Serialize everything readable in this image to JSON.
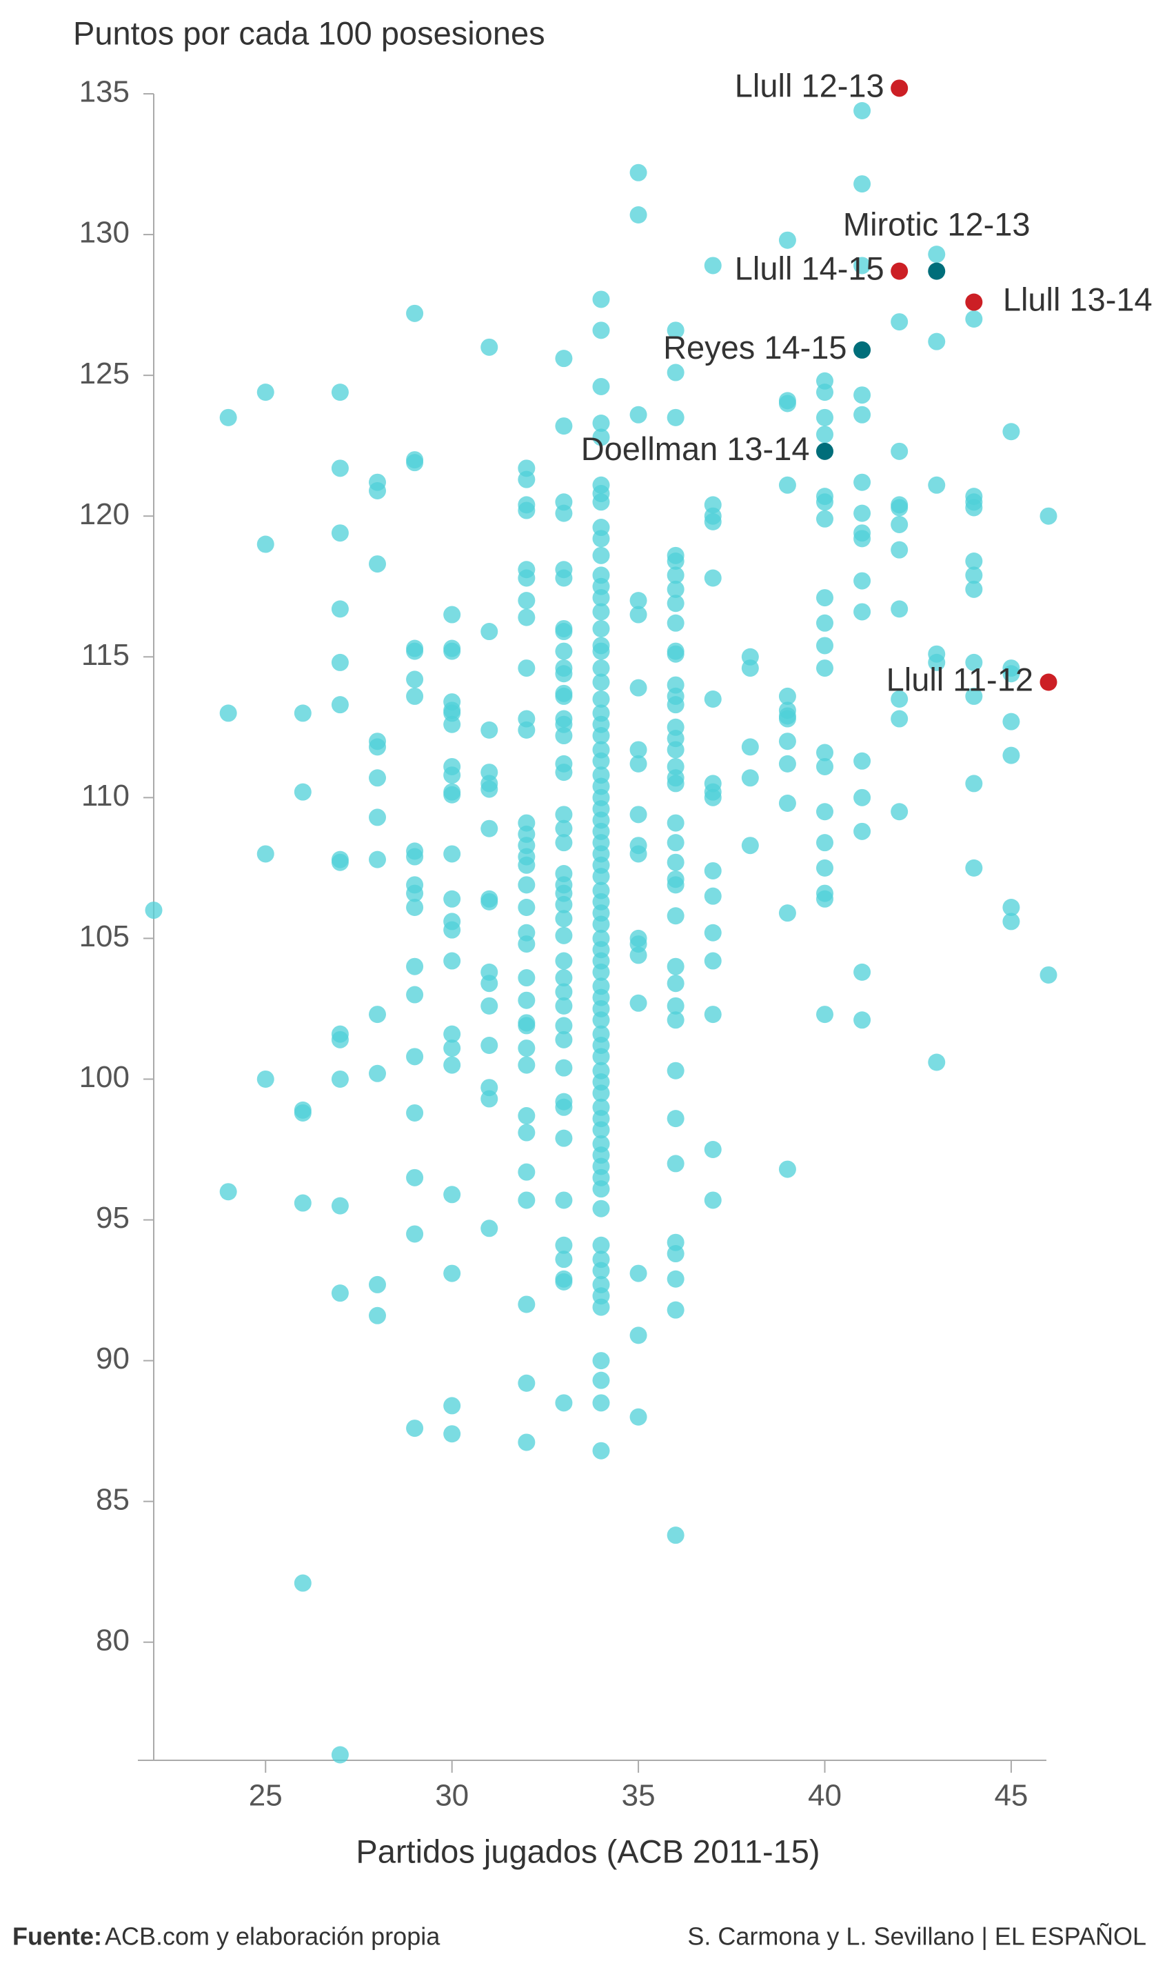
{
  "chart_data": {
    "type": "scatter",
    "title": "Puntos por cada 100 posesiones",
    "x_label": "Partidos jugados (ACB 2011-15)",
    "xlim": [
      22,
      46
    ],
    "xticks": [
      25,
      30,
      35,
      40,
      45
    ],
    "ylim": [
      76,
      135
    ],
    "yticks": [
      80,
      85,
      90,
      95,
      100,
      105,
      110,
      115,
      120,
      125,
      130,
      135
    ],
    "color": "#4fd0d8",
    "points": [
      [
        22,
        106
      ],
      [
        24,
        123.5
      ],
      [
        24,
        113
      ],
      [
        24,
        96
      ],
      [
        25,
        124.4
      ],
      [
        25,
        119
      ],
      [
        25,
        108
      ],
      [
        25,
        100
      ],
      [
        26,
        113
      ],
      [
        26,
        110.2
      ],
      [
        26,
        98.9
      ],
      [
        26,
        98.8
      ],
      [
        26,
        95.6
      ],
      [
        26,
        82.1
      ],
      [
        27,
        124.4
      ],
      [
        27,
        121.7
      ],
      [
        27,
        119.4
      ],
      [
        27,
        116.7
      ],
      [
        27,
        114.8
      ],
      [
        27,
        113.3
      ],
      [
        27,
        107.8
      ],
      [
        27,
        107.7
      ],
      [
        27,
        101.6
      ],
      [
        27,
        101.4
      ],
      [
        27,
        100
      ],
      [
        27,
        95.5
      ],
      [
        27,
        92.4
      ],
      [
        27,
        76
      ],
      [
        28,
        121.2
      ],
      [
        28,
        120.9
      ],
      [
        28,
        118.3
      ],
      [
        28,
        112
      ],
      [
        28,
        111.8
      ],
      [
        28,
        110.7
      ],
      [
        28,
        109.3
      ],
      [
        28,
        107.8
      ],
      [
        28,
        102.3
      ],
      [
        28,
        100.2
      ],
      [
        28,
        92.7
      ],
      [
        28,
        91.6
      ],
      [
        29,
        127.2
      ],
      [
        29,
        122
      ],
      [
        29,
        121.9
      ],
      [
        29,
        115.3
      ],
      [
        29,
        115.2
      ],
      [
        29,
        114.2
      ],
      [
        29,
        113.6
      ],
      [
        29,
        108.1
      ],
      [
        29,
        107.9
      ],
      [
        29,
        106.9
      ],
      [
        29,
        106.6
      ],
      [
        29,
        106.1
      ],
      [
        29,
        104
      ],
      [
        29,
        103
      ],
      [
        29,
        100.8
      ],
      [
        29,
        98.8
      ],
      [
        29,
        96.5
      ],
      [
        29,
        94.5
      ],
      [
        29,
        87.6
      ],
      [
        30,
        116.5
      ],
      [
        30,
        115.3
      ],
      [
        30,
        115.2
      ],
      [
        30,
        113.4
      ],
      [
        30,
        113.1
      ],
      [
        30,
        113
      ],
      [
        30,
        112.6
      ],
      [
        30,
        111.1
      ],
      [
        30,
        110.8
      ],
      [
        30,
        110.2
      ],
      [
        30,
        110.1
      ],
      [
        30,
        108
      ],
      [
        30,
        106.4
      ],
      [
        30,
        105.6
      ],
      [
        30,
        105.3
      ],
      [
        30,
        104.2
      ],
      [
        30,
        101.6
      ],
      [
        30,
        101.1
      ],
      [
        30,
        100.5
      ],
      [
        30,
        95.9
      ],
      [
        30,
        93.1
      ],
      [
        30,
        88.4
      ],
      [
        30,
        87.4
      ],
      [
        31,
        126
      ],
      [
        31,
        115.9
      ],
      [
        31,
        112.4
      ],
      [
        31,
        110.9
      ],
      [
        31,
        110.5
      ],
      [
        31,
        110.3
      ],
      [
        31,
        108.9
      ],
      [
        31,
        106.4
      ],
      [
        31,
        106.3
      ],
      [
        31,
        103.8
      ],
      [
        31,
        103.4
      ],
      [
        31,
        102.6
      ],
      [
        31,
        101.2
      ],
      [
        31,
        99.7
      ],
      [
        31,
        99.3
      ],
      [
        31,
        94.7
      ],
      [
        32,
        121.7
      ],
      [
        32,
        121.3
      ],
      [
        32,
        120.4
      ],
      [
        32,
        120.2
      ],
      [
        32,
        118.1
      ],
      [
        32,
        117.8
      ],
      [
        32,
        117
      ],
      [
        32,
        116.4
      ],
      [
        32,
        114.6
      ],
      [
        32,
        112.8
      ],
      [
        32,
        112.4
      ],
      [
        32,
        109.1
      ],
      [
        32,
        108.7
      ],
      [
        32,
        108.3
      ],
      [
        32,
        107.9
      ],
      [
        32,
        107.6
      ],
      [
        32,
        106.9
      ],
      [
        32,
        106.1
      ],
      [
        32,
        105.2
      ],
      [
        32,
        104.8
      ],
      [
        32,
        103.6
      ],
      [
        32,
        102.8
      ],
      [
        32,
        102
      ],
      [
        32,
        101.9
      ],
      [
        32,
        101.1
      ],
      [
        32,
        100.5
      ],
      [
        32,
        98.7
      ],
      [
        32,
        98.1
      ],
      [
        32,
        96.7
      ],
      [
        32,
        95.7
      ],
      [
        32,
        92
      ],
      [
        32,
        89.2
      ],
      [
        32,
        87.1
      ],
      [
        33,
        125.6
      ],
      [
        33,
        123.2
      ],
      [
        33,
        120.5
      ],
      [
        33,
        120.1
      ],
      [
        33,
        118.1
      ],
      [
        33,
        117.8
      ],
      [
        33,
        116
      ],
      [
        33,
        115.9
      ],
      [
        33,
        115.2
      ],
      [
        33,
        114.6
      ],
      [
        33,
        114.4
      ],
      [
        33,
        113.7
      ],
      [
        33,
        113.6
      ],
      [
        33,
        112.8
      ],
      [
        33,
        112.6
      ],
      [
        33,
        112.2
      ],
      [
        33,
        111.2
      ],
      [
        33,
        110.9
      ],
      [
        33,
        109.4
      ],
      [
        33,
        108.9
      ],
      [
        33,
        108.4
      ],
      [
        33,
        107.3
      ],
      [
        33,
        106.9
      ],
      [
        33,
        106.6
      ],
      [
        33,
        106.2
      ],
      [
        33,
        105.7
      ],
      [
        33,
        105.1
      ],
      [
        33,
        104.2
      ],
      [
        33,
        103.6
      ],
      [
        33,
        103.1
      ],
      [
        33,
        102.6
      ],
      [
        33,
        101.9
      ],
      [
        33,
        101.4
      ],
      [
        33,
        100.4
      ],
      [
        33,
        99.2
      ],
      [
        33,
        99
      ],
      [
        33,
        97.9
      ],
      [
        33,
        95.7
      ],
      [
        33,
        94.1
      ],
      [
        33,
        93.6
      ],
      [
        33,
        92.9
      ],
      [
        33,
        92.8
      ],
      [
        33,
        88.5
      ],
      [
        34,
        127.7
      ],
      [
        34,
        126.6
      ],
      [
        34,
        124.6
      ],
      [
        34,
        123.3
      ],
      [
        34,
        122.8
      ],
      [
        34,
        121.1
      ],
      [
        34,
        120.8
      ],
      [
        34,
        120.5
      ],
      [
        34,
        119.6
      ],
      [
        34,
        119.2
      ],
      [
        34,
        118.6
      ],
      [
        34,
        117.9
      ],
      [
        34,
        117.5
      ],
      [
        34,
        117.1
      ],
      [
        34,
        116.6
      ],
      [
        34,
        116
      ],
      [
        34,
        115.4
      ],
      [
        34,
        115.2
      ],
      [
        34,
        114.6
      ],
      [
        34,
        114.1
      ],
      [
        34,
        113.5
      ],
      [
        34,
        113
      ],
      [
        34,
        112.6
      ],
      [
        34,
        112.2
      ],
      [
        34,
        111.7
      ],
      [
        34,
        111.3
      ],
      [
        34,
        110.8
      ],
      [
        34,
        110.4
      ],
      [
        34,
        110
      ],
      [
        34,
        109.6
      ],
      [
        34,
        109.2
      ],
      [
        34,
        108.8
      ],
      [
        34,
        108.4
      ],
      [
        34,
        108
      ],
      [
        34,
        107.6
      ],
      [
        34,
        107.2
      ],
      [
        34,
        106.7
      ],
      [
        34,
        106.3
      ],
      [
        34,
        105.9
      ],
      [
        34,
        105.5
      ],
      [
        34,
        105
      ],
      [
        34,
        104.6
      ],
      [
        34,
        104.2
      ],
      [
        34,
        103.8
      ],
      [
        34,
        103.3
      ],
      [
        34,
        102.9
      ],
      [
        34,
        102.5
      ],
      [
        34,
        102.1
      ],
      [
        34,
        101.6
      ],
      [
        34,
        101.2
      ],
      [
        34,
        100.8
      ],
      [
        34,
        100.3
      ],
      [
        34,
        99.9
      ],
      [
        34,
        99.5
      ],
      [
        34,
        99
      ],
      [
        34,
        98.6
      ],
      [
        34,
        98.2
      ],
      [
        34,
        97.7
      ],
      [
        34,
        97.3
      ],
      [
        34,
        96.9
      ],
      [
        34,
        96.5
      ],
      [
        34,
        96.1
      ],
      [
        34,
        95.4
      ],
      [
        34,
        94.1
      ],
      [
        34,
        93.6
      ],
      [
        34,
        93.2
      ],
      [
        34,
        92.7
      ],
      [
        34,
        92.3
      ],
      [
        34,
        91.9
      ],
      [
        34,
        90
      ],
      [
        34,
        89.3
      ],
      [
        34,
        88.5
      ],
      [
        34,
        86.8
      ],
      [
        35,
        132.2
      ],
      [
        35,
        130.7
      ],
      [
        35,
        123.6
      ],
      [
        35,
        117
      ],
      [
        35,
        116.5
      ],
      [
        35,
        113.9
      ],
      [
        35,
        111.7
      ],
      [
        35,
        111.2
      ],
      [
        35,
        109.4
      ],
      [
        35,
        108.3
      ],
      [
        35,
        108
      ],
      [
        35,
        105
      ],
      [
        35,
        104.8
      ],
      [
        35,
        104.4
      ],
      [
        35,
        102.7
      ],
      [
        35,
        93.1
      ],
      [
        35,
        90.9
      ],
      [
        35,
        88
      ],
      [
        36,
        126.6
      ],
      [
        36,
        125.1
      ],
      [
        36,
        123.5
      ],
      [
        36,
        118.6
      ],
      [
        36,
        118.4
      ],
      [
        36,
        117.9
      ],
      [
        36,
        117.4
      ],
      [
        36,
        116.9
      ],
      [
        36,
        116.2
      ],
      [
        36,
        115.2
      ],
      [
        36,
        115.1
      ],
      [
        36,
        114
      ],
      [
        36,
        113.6
      ],
      [
        36,
        113.3
      ],
      [
        36,
        112.5
      ],
      [
        36,
        112.1
      ],
      [
        36,
        111.7
      ],
      [
        36,
        111.1
      ],
      [
        36,
        110.7
      ],
      [
        36,
        110.5
      ],
      [
        36,
        109.1
      ],
      [
        36,
        108.4
      ],
      [
        36,
        107.7
      ],
      [
        36,
        107.1
      ],
      [
        36,
        106.9
      ],
      [
        36,
        105.8
      ],
      [
        36,
        104
      ],
      [
        36,
        103.4
      ],
      [
        36,
        102.6
      ],
      [
        36,
        102.1
      ],
      [
        36,
        100.3
      ],
      [
        36,
        98.6
      ],
      [
        36,
        97
      ],
      [
        36,
        94.2
      ],
      [
        36,
        93.8
      ],
      [
        36,
        92.9
      ],
      [
        36,
        91.8
      ],
      [
        36,
        83.8
      ],
      [
        37,
        128.9
      ],
      [
        37,
        120.4
      ],
      [
        37,
        120
      ],
      [
        37,
        119.8
      ],
      [
        37,
        117.8
      ],
      [
        37,
        113.5
      ],
      [
        37,
        110.5
      ],
      [
        37,
        110.2
      ],
      [
        37,
        110
      ],
      [
        37,
        107.4
      ],
      [
        37,
        106.5
      ],
      [
        37,
        105.2
      ],
      [
        37,
        104.2
      ],
      [
        37,
        102.3
      ],
      [
        37,
        97.5
      ],
      [
        37,
        95.7
      ],
      [
        38,
        115
      ],
      [
        38,
        114.6
      ],
      [
        38,
        111.8
      ],
      [
        38,
        110.7
      ],
      [
        38,
        108.3
      ],
      [
        39,
        129.8
      ],
      [
        39,
        124.1
      ],
      [
        39,
        124
      ],
      [
        39,
        121.1
      ],
      [
        39,
        113.6
      ],
      [
        39,
        113.1
      ],
      [
        39,
        112.9
      ],
      [
        39,
        112.8
      ],
      [
        39,
        112
      ],
      [
        39,
        111.2
      ],
      [
        39,
        109.8
      ],
      [
        39,
        105.9
      ],
      [
        39,
        96.8
      ],
      [
        40,
        124.8
      ],
      [
        40,
        124.4
      ],
      [
        40,
        123.5
      ],
      [
        40,
        122.9
      ],
      [
        40,
        120.7
      ],
      [
        40,
        120.5
      ],
      [
        40,
        119.9
      ],
      [
        40,
        117.1
      ],
      [
        40,
        116.2
      ],
      [
        40,
        115.4
      ],
      [
        40,
        114.6
      ],
      [
        40,
        111.6
      ],
      [
        40,
        111.1
      ],
      [
        40,
        109.5
      ],
      [
        40,
        108.4
      ],
      [
        40,
        107.5
      ],
      [
        40,
        106.6
      ],
      [
        40,
        106.4
      ],
      [
        40,
        102.3
      ],
      [
        41,
        134.4
      ],
      [
        41,
        131.8
      ],
      [
        41,
        128.9
      ],
      [
        41,
        124.3
      ],
      [
        41,
        123.6
      ],
      [
        41,
        121.2
      ],
      [
        41,
        120.1
      ],
      [
        41,
        119.4
      ],
      [
        41,
        119.2
      ],
      [
        41,
        117.7
      ],
      [
        41,
        116.6
      ],
      [
        41,
        111.3
      ],
      [
        41,
        110
      ],
      [
        41,
        108.8
      ],
      [
        41,
        103.8
      ],
      [
        41,
        102.1
      ],
      [
        42,
        126.9
      ],
      [
        42,
        122.3
      ],
      [
        42,
        120.4
      ],
      [
        42,
        120.3
      ],
      [
        42,
        119.7
      ],
      [
        42,
        118.8
      ],
      [
        42,
        116.7
      ],
      [
        42,
        113.5
      ],
      [
        42,
        112.8
      ],
      [
        42,
        109.5
      ],
      [
        43,
        129.3
      ],
      [
        43,
        126.2
      ],
      [
        43,
        121.1
      ],
      [
        43,
        115.1
      ],
      [
        43,
        114.8
      ],
      [
        43,
        100.6
      ],
      [
        44,
        127
      ],
      [
        44,
        120.7
      ],
      [
        44,
        120.5
      ],
      [
        44,
        120.3
      ],
      [
        44,
        118.4
      ],
      [
        44,
        117.9
      ],
      [
        44,
        117.4
      ],
      [
        44,
        114.8
      ],
      [
        44,
        113.6
      ],
      [
        44,
        110.5
      ],
      [
        44,
        107.5
      ],
      [
        45,
        123
      ],
      [
        45,
        114.6
      ],
      [
        45,
        114.4
      ],
      [
        45,
        112.7
      ],
      [
        45,
        111.5
      ],
      [
        45,
        106.1
      ],
      [
        45,
        105.6
      ],
      [
        46,
        120
      ],
      [
        46,
        103.7
      ]
    ],
    "highlights": [
      {
        "label": "Llull 12-13",
        "x": 42,
        "y": 135.2,
        "color": "#cc1f25"
      },
      {
        "label": "Mirotic 12-13",
        "x": 43,
        "y": 128.7,
        "color": "#006e7a"
      },
      {
        "label": "Llull 14-15",
        "x": 42,
        "y": 128.7,
        "color": "#cc1f25"
      },
      {
        "label": "Llull 13-14",
        "x": 44,
        "y": 127.6,
        "color": "#cc1f25"
      },
      {
        "label": "Reyes 14-15",
        "x": 41,
        "y": 125.9,
        "color": "#006e7a"
      },
      {
        "label": "Doellman 13-14",
        "x": 40,
        "y": 122.3,
        "color": "#006e7a"
      },
      {
        "label": "Llull 11-12",
        "x": 46,
        "y": 114.1,
        "color": "#cc1f25"
      }
    ]
  },
  "footer": {
    "source_label": "Fuente:",
    "source": "ACB.com y elaboración propia",
    "credit": "S. Carmona y L. Sevillano | EL ESPAÑOL"
  }
}
